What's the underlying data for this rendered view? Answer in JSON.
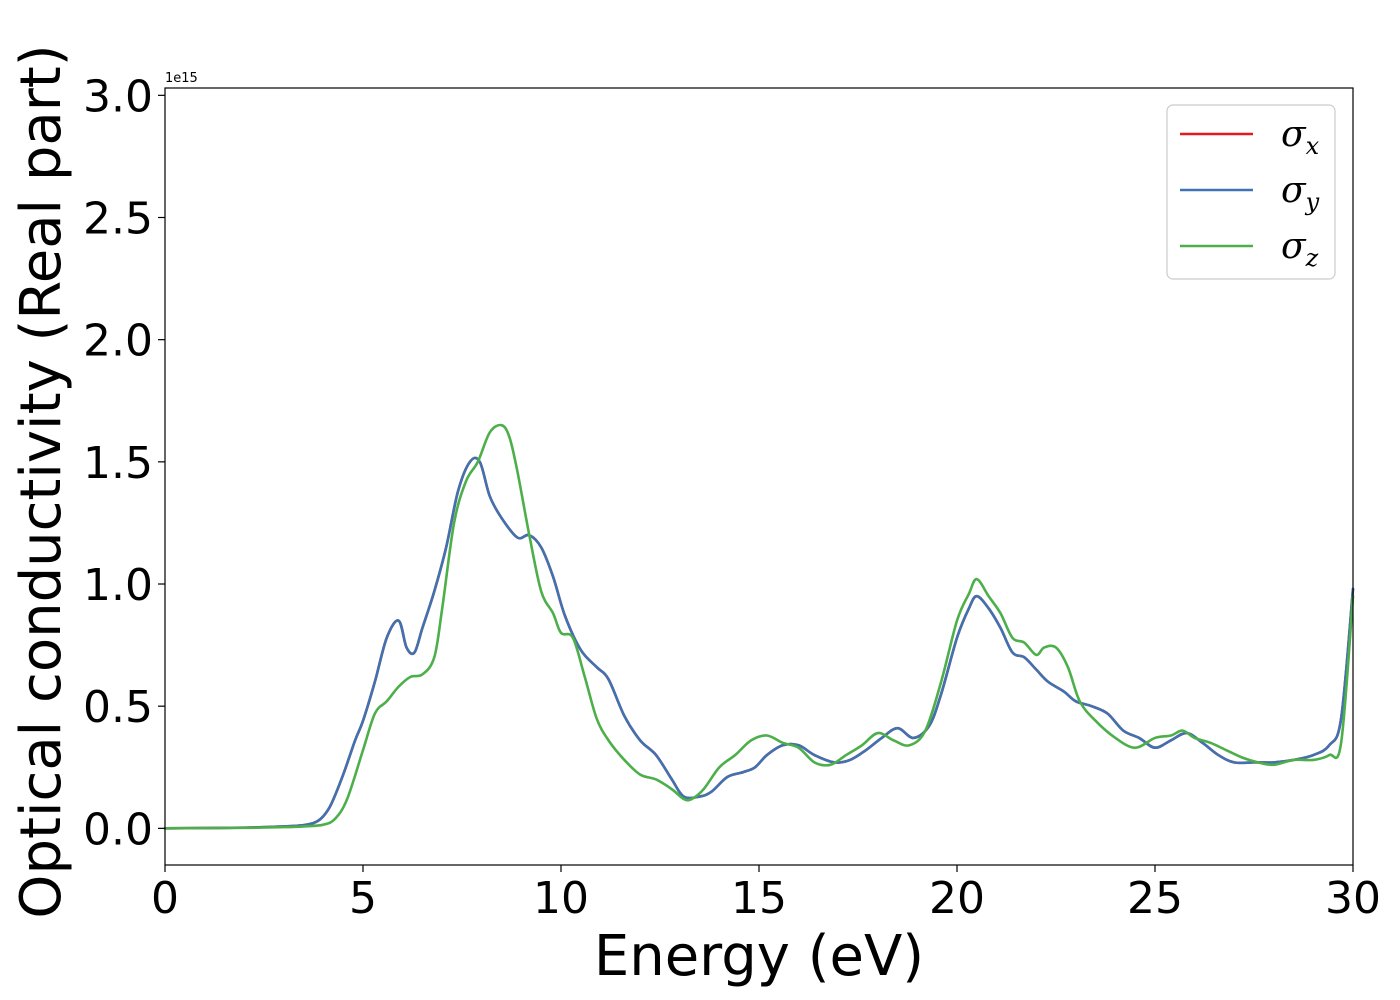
{
  "chart_data": {
    "type": "line",
    "title": "",
    "xlabel": "Energy (eV)",
    "ylabel": "Optical conductivity (Real part)",
    "y_offset_text": "1e15",
    "xlim": [
      0,
      30
    ],
    "ylim": [
      -0.15,
      3.03
    ],
    "x_ticks": [
      0,
      5,
      10,
      15,
      20,
      25,
      30
    ],
    "x_tick_labels": [
      "0",
      "5",
      "10",
      "15",
      "20",
      "25",
      "30"
    ],
    "y_ticks": [
      0.0,
      0.5,
      1.0,
      1.5,
      2.0,
      2.5,
      3.0
    ],
    "y_tick_labels": [
      "0.0",
      "0.5",
      "1.0",
      "1.5",
      "2.0",
      "2.5",
      "3.0"
    ],
    "grid": false,
    "legend_position": "top-right",
    "series": [
      {
        "name": "σx",
        "legend_base": "σ",
        "legend_sub": "x",
        "color": "#e41a1c",
        "x": [
          0,
          2,
          3,
          3.5,
          3.8,
          4.0,
          4.2,
          4.5,
          4.8,
          5.0,
          5.3,
          5.6,
          5.9,
          6.1,
          6.3,
          6.5,
          6.8,
          7.1,
          7.4,
          7.7,
          7.95,
          8.2,
          8.5,
          8.9,
          9.2,
          9.5,
          9.8,
          10.1,
          10.5,
          10.9,
          11.2,
          11.6,
          12.0,
          12.4,
          12.8,
          13.1,
          13.5,
          13.8,
          14.2,
          14.6,
          14.9,
          15.2,
          15.6,
          16.0,
          16.4,
          16.9,
          17.3,
          17.7,
          18.1,
          18.5,
          18.9,
          19.3,
          19.6,
          20.0,
          20.3,
          20.5,
          20.8,
          21.1,
          21.4,
          21.7,
          22.0,
          22.3,
          22.7,
          23.0,
          23.4,
          23.8,
          24.2,
          24.6,
          25.0,
          25.4,
          25.8,
          26.2,
          26.6,
          27.0,
          27.5,
          28.0,
          28.5,
          29.0,
          29.4,
          29.7,
          30.0
        ],
        "y": [
          0,
          0.003,
          0.008,
          0.013,
          0.025,
          0.05,
          0.1,
          0.22,
          0.36,
          0.44,
          0.6,
          0.78,
          0.85,
          0.74,
          0.72,
          0.82,
          0.97,
          1.15,
          1.38,
          1.5,
          1.5,
          1.36,
          1.27,
          1.19,
          1.2,
          1.15,
          1.03,
          0.87,
          0.73,
          0.66,
          0.61,
          0.46,
          0.36,
          0.3,
          0.2,
          0.13,
          0.13,
          0.15,
          0.21,
          0.23,
          0.25,
          0.3,
          0.34,
          0.34,
          0.3,
          0.27,
          0.28,
          0.32,
          0.37,
          0.41,
          0.37,
          0.42,
          0.55,
          0.78,
          0.9,
          0.95,
          0.9,
          0.82,
          0.72,
          0.7,
          0.65,
          0.6,
          0.56,
          0.52,
          0.5,
          0.47,
          0.4,
          0.37,
          0.33,
          0.36,
          0.39,
          0.35,
          0.3,
          0.27,
          0.27,
          0.27,
          0.28,
          0.3,
          0.34,
          0.45,
          0.98
        ]
      },
      {
        "name": "σy",
        "legend_base": "σ",
        "legend_sub": "y",
        "color": "#3f72b0",
        "x": [
          0,
          2,
          3,
          3.5,
          3.8,
          4.0,
          4.2,
          4.5,
          4.8,
          5.0,
          5.3,
          5.6,
          5.9,
          6.1,
          6.3,
          6.5,
          6.8,
          7.1,
          7.4,
          7.7,
          7.95,
          8.2,
          8.5,
          8.9,
          9.2,
          9.5,
          9.8,
          10.1,
          10.5,
          10.9,
          11.2,
          11.6,
          12.0,
          12.4,
          12.8,
          13.1,
          13.5,
          13.8,
          14.2,
          14.6,
          14.9,
          15.2,
          15.6,
          16.0,
          16.4,
          16.9,
          17.3,
          17.7,
          18.1,
          18.5,
          18.9,
          19.3,
          19.6,
          20.0,
          20.3,
          20.5,
          20.8,
          21.1,
          21.4,
          21.7,
          22.0,
          22.3,
          22.7,
          23.0,
          23.4,
          23.8,
          24.2,
          24.6,
          25.0,
          25.4,
          25.8,
          26.2,
          26.6,
          27.0,
          27.5,
          28.0,
          28.5,
          29.0,
          29.4,
          29.7,
          30.0
        ],
        "y": [
          0,
          0.003,
          0.008,
          0.013,
          0.025,
          0.05,
          0.1,
          0.22,
          0.36,
          0.44,
          0.6,
          0.78,
          0.85,
          0.74,
          0.72,
          0.82,
          0.97,
          1.15,
          1.38,
          1.5,
          1.5,
          1.36,
          1.27,
          1.19,
          1.2,
          1.15,
          1.03,
          0.87,
          0.73,
          0.66,
          0.61,
          0.46,
          0.36,
          0.3,
          0.2,
          0.13,
          0.13,
          0.15,
          0.21,
          0.23,
          0.25,
          0.3,
          0.34,
          0.34,
          0.3,
          0.27,
          0.28,
          0.32,
          0.37,
          0.41,
          0.37,
          0.42,
          0.55,
          0.78,
          0.9,
          0.95,
          0.9,
          0.82,
          0.72,
          0.7,
          0.65,
          0.6,
          0.56,
          0.52,
          0.5,
          0.47,
          0.4,
          0.37,
          0.33,
          0.36,
          0.39,
          0.35,
          0.3,
          0.27,
          0.27,
          0.27,
          0.28,
          0.3,
          0.34,
          0.45,
          0.98
        ]
      },
      {
        "name": "σz",
        "legend_base": "σ",
        "legend_sub": "z",
        "color": "#4daf4a",
        "x": [
          0,
          2,
          3,
          3.5,
          4.0,
          4.3,
          4.6,
          5.0,
          5.3,
          5.6,
          5.9,
          6.2,
          6.5,
          6.8,
          7.0,
          7.3,
          7.6,
          7.9,
          8.2,
          8.5,
          8.7,
          8.9,
          9.2,
          9.5,
          9.8,
          10.0,
          10.3,
          10.6,
          10.9,
          11.2,
          11.6,
          12.0,
          12.4,
          12.8,
          13.1,
          13.3,
          13.6,
          14.0,
          14.4,
          14.8,
          15.2,
          15.6,
          16.0,
          16.4,
          16.8,
          17.2,
          17.6,
          18.0,
          18.4,
          18.8,
          19.2,
          19.6,
          20.0,
          20.3,
          20.5,
          20.8,
          21.1,
          21.4,
          21.7,
          22.0,
          22.2,
          22.5,
          22.8,
          23.1,
          23.5,
          24.0,
          24.5,
          25.0,
          25.4,
          25.7,
          26.0,
          26.4,
          26.8,
          27.2,
          27.6,
          28.0,
          28.5,
          29.0,
          29.4,
          29.7,
          30.0
        ],
        "y": [
          0,
          0.002,
          0.005,
          0.008,
          0.015,
          0.04,
          0.12,
          0.32,
          0.47,
          0.52,
          0.58,
          0.62,
          0.63,
          0.7,
          0.9,
          1.25,
          1.42,
          1.5,
          1.62,
          1.65,
          1.6,
          1.46,
          1.2,
          0.97,
          0.88,
          0.8,
          0.78,
          0.62,
          0.45,
          0.36,
          0.28,
          0.22,
          0.2,
          0.16,
          0.12,
          0.12,
          0.16,
          0.25,
          0.3,
          0.36,
          0.38,
          0.35,
          0.33,
          0.27,
          0.26,
          0.3,
          0.34,
          0.39,
          0.36,
          0.34,
          0.4,
          0.6,
          0.85,
          0.96,
          1.02,
          0.95,
          0.88,
          0.78,
          0.76,
          0.71,
          0.74,
          0.74,
          0.66,
          0.52,
          0.44,
          0.37,
          0.33,
          0.37,
          0.38,
          0.4,
          0.37,
          0.35,
          0.32,
          0.29,
          0.27,
          0.26,
          0.28,
          0.28,
          0.3,
          0.35,
          0.95
        ]
      }
    ]
  }
}
